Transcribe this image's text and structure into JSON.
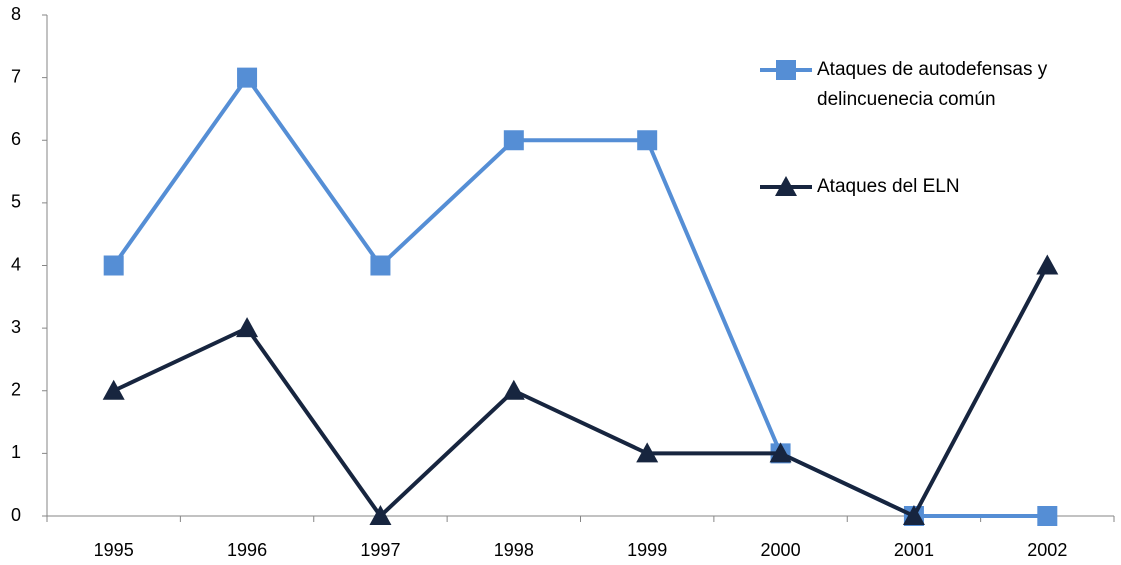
{
  "chart_data": {
    "type": "line",
    "categories": [
      "1995",
      "1996",
      "1997",
      "1998",
      "1999",
      "2000",
      "2001",
      "2002"
    ],
    "series": [
      {
        "name": "Ataques de autodefensas y delincuenecia común",
        "color": "#558ed5",
        "marker": "square",
        "values": [
          4,
          7,
          4,
          6,
          6,
          1,
          0,
          0
        ]
      },
      {
        "name": "Ataques del ELN",
        "color": "#17253f",
        "marker": "triangle",
        "values": [
          2,
          3,
          0,
          2,
          1,
          1,
          0,
          4
        ]
      }
    ],
    "ylim": [
      0,
      8
    ],
    "yticks": [
      0,
      1,
      2,
      3,
      4,
      5,
      6,
      7,
      8
    ],
    "grid": false,
    "legend": "right"
  }
}
